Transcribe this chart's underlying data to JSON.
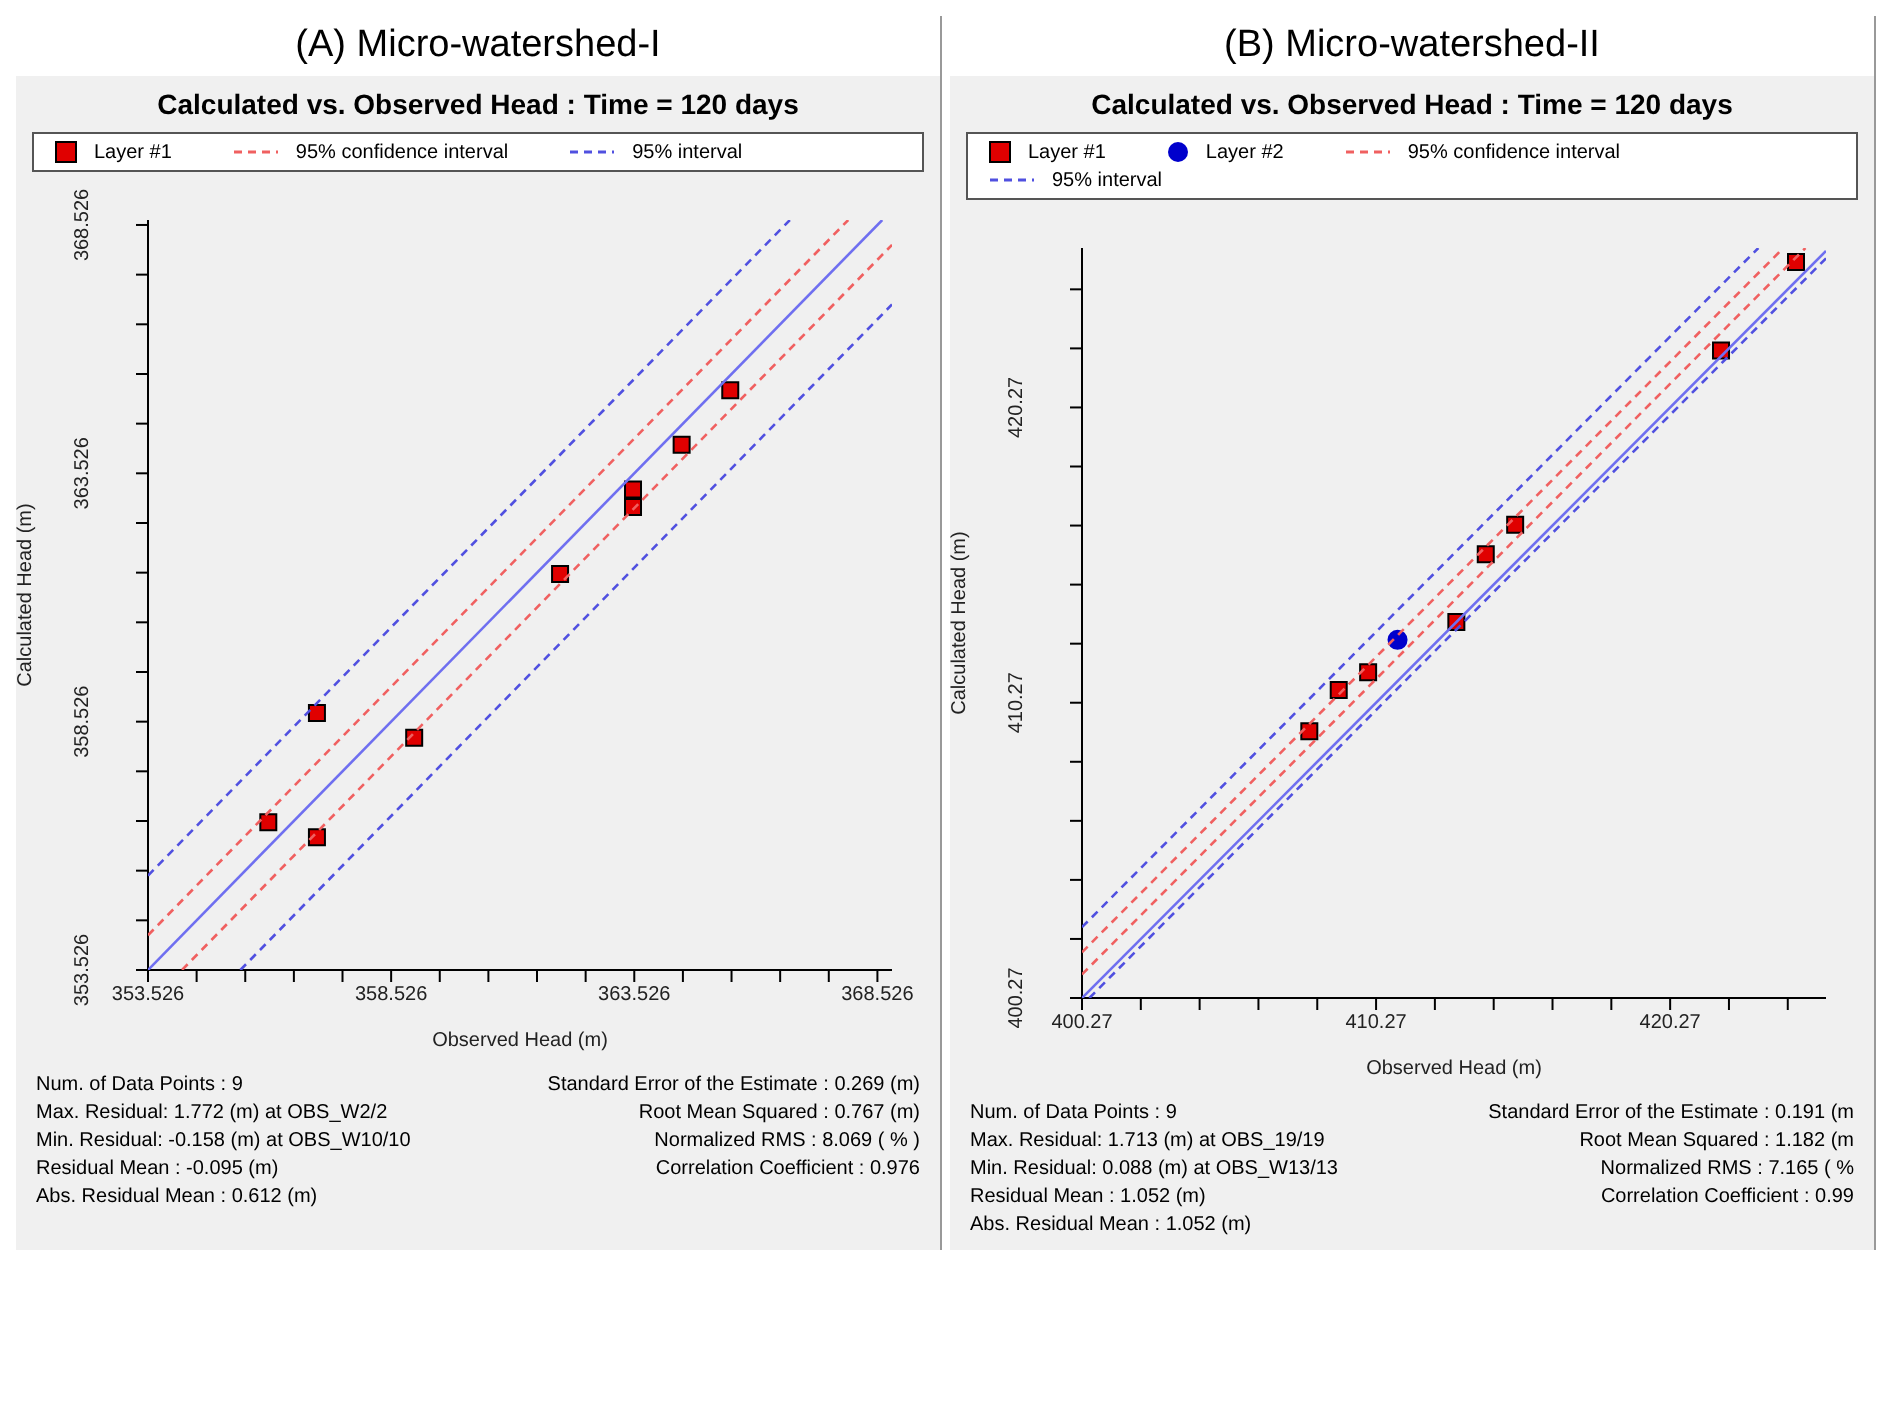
{
  "chart_data": [
    {
      "type": "scatter",
      "title": "(A) Micro-watershed-I",
      "subtitle": "Calculated vs. Observed Head : Time = 120 days",
      "xlabel": "Observed Head (m)",
      "ylabel": "Calculated Head (m)",
      "legend": "top",
      "grid": false,
      "xlim": [
        353.526,
        368.826
      ],
      "ylim": [
        353.526,
        368.626
      ],
      "xticks": [
        353.526,
        {
          "value": 354.526,
          "label": null
        },
        {
          "value": 355.526,
          "label": null
        },
        {
          "value": 356.526,
          "label": null
        },
        {
          "value": 357.526,
          "label": null
        },
        358.526,
        {
          "value": 359.526,
          "label": null
        },
        {
          "value": 360.526,
          "label": null
        },
        {
          "value": 361.526,
          "label": null
        },
        {
          "value": 362.526,
          "label": null
        },
        363.526,
        {
          "value": 364.526,
          "label": null
        },
        {
          "value": 365.526,
          "label": null
        },
        {
          "value": 366.526,
          "label": null
        },
        {
          "value": 367.526,
          "label": null
        },
        368.526
      ],
      "yticks": [
        353.526,
        {
          "value": 354.526,
          "label": null
        },
        {
          "value": 355.526,
          "label": null
        },
        {
          "value": 356.526,
          "label": null
        },
        {
          "value": 357.526,
          "label": null
        },
        358.526,
        {
          "value": 359.526,
          "label": null
        },
        {
          "value": 360.526,
          "label": null
        },
        {
          "value": 361.526,
          "label": null
        },
        {
          "value": 362.526,
          "label": null
        },
        363.526,
        {
          "value": 364.526,
          "label": null
        },
        {
          "value": 365.526,
          "label": null
        },
        {
          "value": 366.526,
          "label": null
        },
        {
          "value": 367.526,
          "label": null
        },
        368.526
      ],
      "series": [
        {
          "name": "Layer #1",
          "marker": "square",
          "color": "#e00000",
          "x": [
            356.0,
            357.0,
            357.0,
            359.0,
            362.0,
            363.5,
            363.5,
            364.5,
            365.5
          ],
          "values": [
            356.5,
            356.2,
            358.7,
            358.2,
            361.5,
            363.2,
            362.85,
            364.1,
            365.2
          ]
        },
        {
          "type": "line",
          "line_style": "solid",
          "marker": "none",
          "color": "#6f6ff0",
          "x": [
            353.526,
            368.626
          ],
          "values": [
            353.526,
            368.626
          ]
        },
        {
          "name": "95% confidence interval",
          "type": "line",
          "line_style": "dashed",
          "marker": "none",
          "color": "#f06060",
          "x": [
            353.526,
            367.926
          ],
          "values": [
            354.226,
            368.626
          ]
        },
        {
          "type": "line",
          "line_style": "dashed",
          "marker": "none",
          "color": "#f06060",
          "x": [
            354.226,
            368.826
          ],
          "values": [
            353.526,
            368.126
          ]
        },
        {
          "name": "95% interval",
          "type": "line",
          "line_style": "dashed",
          "marker": "none",
          "color": "#5050e0",
          "x": [
            353.526,
            366.726
          ],
          "values": [
            355.426,
            368.626
          ]
        },
        {
          "type": "line",
          "line_style": "dashed",
          "marker": "none",
          "color": "#5050e0",
          "x": [
            355.426,
            368.826
          ],
          "values": [
            353.526,
            366.926
          ]
        }
      ],
      "annotations": [
        "Num. of Data Points : 9",
        "Max. Residual: 1.772 (m) at OBS_W2/2",
        "Min. Residual: -0.158 (m) at OBS_W10/10",
        "Residual Mean : -0.095 (m)",
        "Abs. Residual Mean : 0.612 (m)",
        "Standard Error of the Estimate : 0.269 (m)",
        "Root Mean Squared : 0.767 (m)",
        "Normalized RMS : 8.069 ( % )",
        "Correlation Coefficient : 0.976"
      ]
    },
    {
      "type": "scatter",
      "title": "(B) Micro-watershed-II",
      "subtitle": "Calculated vs. Observed Head : Time = 120 days",
      "xlabel": "Observed Head (m)",
      "ylabel": "Calculated Head (m)",
      "legend": "top",
      "grid": false,
      "xlim": [
        400.27,
        425.57
      ],
      "ylim": [
        400.27,
        425.67
      ],
      "xticks": [
        400.27,
        {
          "value": 402.27,
          "label": null
        },
        {
          "value": 404.27,
          "label": null
        },
        {
          "value": 406.27,
          "label": null
        },
        {
          "value": 408.27,
          "label": null
        },
        410.27,
        {
          "value": 412.27,
          "label": null
        },
        {
          "value": 414.27,
          "label": null
        },
        {
          "value": 416.27,
          "label": null
        },
        {
          "value": 418.27,
          "label": null
        },
        420.27,
        {
          "value": 422.27,
          "label": null
        },
        {
          "value": 424.27,
          "label": null
        }
      ],
      "yticks": [
        400.27,
        {
          "value": 402.27,
          "label": null
        },
        {
          "value": 404.27,
          "label": null
        },
        {
          "value": 406.27,
          "label": null
        },
        {
          "value": 408.27,
          "label": null
        },
        410.27,
        {
          "value": 412.27,
          "label": null
        },
        {
          "value": 414.27,
          "label": null
        },
        {
          "value": 416.27,
          "label": null
        },
        {
          "value": 418.27,
          "label": null
        },
        420.27,
        {
          "value": 422.27,
          "label": null
        },
        {
          "value": 424.27,
          "label": null
        }
      ],
      "series": [
        {
          "name": "Layer #1",
          "marker": "square",
          "color": "#e00000",
          "x": [
            408.0,
            409.0,
            410.0,
            413.0,
            414.0,
            415.0,
            422.0,
            424.55
          ],
          "values": [
            409.3,
            410.7,
            411.3,
            413.0,
            415.3,
            416.3,
            422.2,
            425.2
          ]
        },
        {
          "name": "Layer #2",
          "marker": "circle",
          "color": "#0000cc",
          "x": [
            411.0
          ],
          "values": [
            412.4
          ]
        },
        {
          "name": "95% confidence interval",
          "type": "line",
          "line_style": "dashed",
          "marker": "none",
          "color": "#f06060",
          "x": [
            400.27,
            424.87
          ],
          "values": [
            401.07,
            425.67
          ]
        },
        {
          "type": "line",
          "line_style": "dashed",
          "marker": "none",
          "color": "#f06060",
          "x": [
            400.27,
            424.12
          ],
          "values": [
            401.82,
            425.67
          ]
        },
        {
          "name": "95% interval",
          "type": "line",
          "line_style": "dashed",
          "marker": "none",
          "color": "#5050e0",
          "x": [
            400.27,
            423.27
          ],
          "values": [
            402.67,
            425.67
          ]
        },
        {
          "type": "line",
          "line_style": "dashed",
          "marker": "none",
          "color": "#5050e0",
          "x": [
            400.52,
            425.57
          ],
          "values": [
            400.27,
            425.32
          ]
        },
        {
          "type": "line",
          "line_style": "solid",
          "marker": "none",
          "color": "#6f6ff0",
          "x": [
            400.27,
            425.57
          ],
          "values": [
            400.27,
            425.57
          ]
        }
      ],
      "annotations": [
        "Num. of Data Points : 9",
        "Max. Residual: 1.713 (m) at OBS_19/19",
        "Min. Residual: 0.088 (m) at OBS_W13/13",
        "Residual Mean : 1.052 (m)",
        "Abs. Residual Mean : 1.052 (m)",
        "Standard Error of the Estimate : 0.191 (m",
        "Root Mean Squared : 1.182 (m",
        "Normalized RMS : 7.165 ( %",
        "Correlation Coefficient : 0.99"
      ]
    }
  ]
}
